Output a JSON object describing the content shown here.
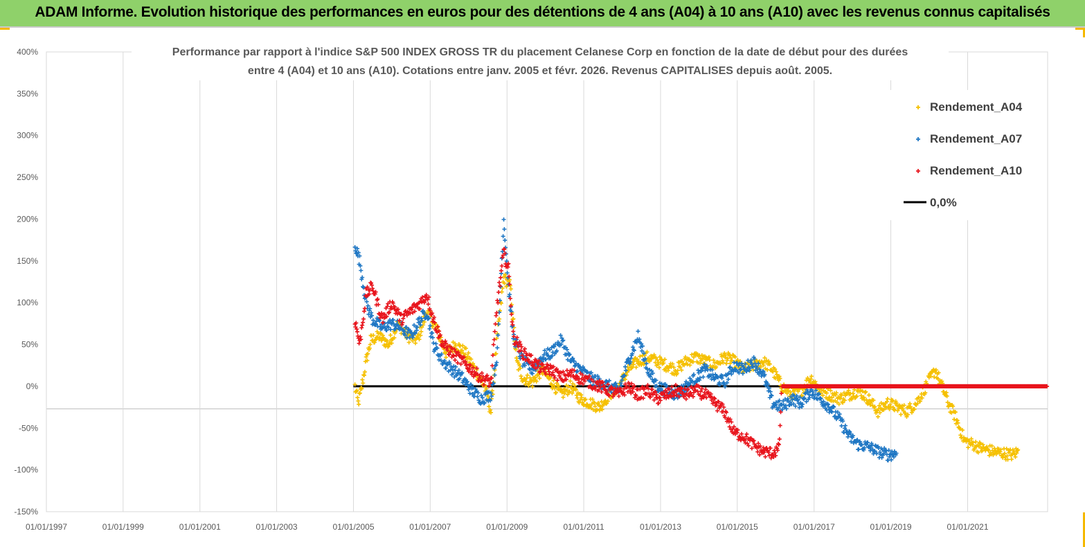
{
  "banner": {
    "title": "ADAM Informe. Evolution historique des performances en euros pour des détentions de 4 ans (A04) à 10 ans (A10) avec les revenus connus capitalisés"
  },
  "colors": {
    "banner_bg": "#8fd16a",
    "accent": "#f5b800",
    "series_A04": "#f5c000",
    "series_A07": "#1f77c4",
    "series_A10": "#e8141c",
    "zero_line": "#000000"
  },
  "chart_data": {
    "type": "scatter",
    "title_lines": [
      "Performance par rapport à l'indice S&P 500 INDEX GROSS TR  du placement Celanese Corp en fonction de la date de début pour des durées",
      "entre 4 (A04) et 10 ans (A10). Cotations entre janv. 2005 et févr. 2026. Revenus CAPITALISES depuis août. 2005."
    ],
    "ylim": [
      -150,
      400
    ],
    "yticks": [
      "400%",
      "350%",
      "300%",
      "250%",
      "200%",
      "150%",
      "100%",
      "50%",
      "0%",
      "-50%",
      "-100%",
      "-150%"
    ],
    "xlim": [
      "1997-01-01",
      "2023-02-01"
    ],
    "xticks": [
      "01/01/1997",
      "01/01/1999",
      "01/01/2001",
      "01/01/2003",
      "01/01/2005",
      "01/01/2007",
      "01/01/2009",
      "01/01/2011",
      "01/01/2013",
      "01/01/2015",
      "01/01/2017",
      "01/01/2019",
      "01/01/2021"
    ],
    "grid": "vertical",
    "legend_position": "top-right",
    "legend": [
      "Rendement_A04",
      "Rendement_A07",
      "Rendement_A10",
      "0,0%"
    ],
    "series": [
      {
        "name": "Rendement_A04",
        "points": [
          [
            "2005-01-15",
            0
          ],
          [
            "2005-02-15",
            -20
          ],
          [
            "2005-03-15",
            -5
          ],
          [
            "2005-05-01",
            30
          ],
          [
            "2005-06-15",
            55
          ],
          [
            "2005-09-01",
            60
          ],
          [
            "2005-12-01",
            50
          ],
          [
            "2006-03-01",
            75
          ],
          [
            "2006-06-01",
            60
          ],
          [
            "2006-09-01",
            55
          ],
          [
            "2006-12-01",
            90
          ],
          [
            "2007-03-01",
            70
          ],
          [
            "2007-06-01",
            40
          ],
          [
            "2007-09-01",
            50
          ],
          [
            "2007-12-01",
            40
          ],
          [
            "2008-03-01",
            20
          ],
          [
            "2008-06-01",
            0
          ],
          [
            "2008-08-01",
            -30
          ],
          [
            "2008-10-01",
            60
          ],
          [
            "2008-12-01",
            130
          ],
          [
            "2009-02-01",
            120
          ],
          [
            "2009-04-01",
            30
          ],
          [
            "2009-06-01",
            10
          ],
          [
            "2009-09-01",
            5
          ],
          [
            "2009-12-01",
            20
          ],
          [
            "2010-03-01",
            5
          ],
          [
            "2010-06-01",
            -10
          ],
          [
            "2010-09-01",
            0
          ],
          [
            "2010-12-01",
            -15
          ],
          [
            "2011-03-01",
            -20
          ],
          [
            "2011-06-01",
            -25
          ],
          [
            "2011-09-01",
            -10
          ],
          [
            "2011-12-01",
            0
          ],
          [
            "2012-03-01",
            20
          ],
          [
            "2012-06-01",
            30
          ],
          [
            "2012-09-01",
            35
          ],
          [
            "2012-12-01",
            30
          ],
          [
            "2013-03-01",
            25
          ],
          [
            "2013-06-01",
            20
          ],
          [
            "2013-09-01",
            30
          ],
          [
            "2013-12-01",
            35
          ],
          [
            "2014-03-01",
            30
          ],
          [
            "2014-06-01",
            25
          ],
          [
            "2014-09-01",
            35
          ],
          [
            "2014-12-01",
            30
          ],
          [
            "2015-03-01",
            20
          ],
          [
            "2015-06-01",
            25
          ],
          [
            "2015-09-01",
            30
          ],
          [
            "2015-12-01",
            20
          ],
          [
            "2016-03-01",
            0
          ],
          [
            "2016-06-01",
            -10
          ],
          [
            "2016-09-01",
            -5
          ],
          [
            "2016-12-01",
            10
          ],
          [
            "2017-03-01",
            -5
          ],
          [
            "2017-06-01",
            -10
          ],
          [
            "2017-09-01",
            -15
          ],
          [
            "2017-12-01",
            -10
          ],
          [
            "2018-03-01",
            -5
          ],
          [
            "2018-06-01",
            -15
          ],
          [
            "2018-09-01",
            -30
          ],
          [
            "2018-12-01",
            -20
          ],
          [
            "2019-03-01",
            -25
          ],
          [
            "2019-06-01",
            -30
          ],
          [
            "2019-09-01",
            -20
          ],
          [
            "2019-12-01",
            0
          ],
          [
            "2020-03-01",
            20
          ],
          [
            "2020-05-01",
            0
          ],
          [
            "2020-07-01",
            -20
          ],
          [
            "2020-09-01",
            -35
          ],
          [
            "2020-12-01",
            -65
          ],
          [
            "2021-03-01",
            -70
          ],
          [
            "2021-06-01",
            -75
          ],
          [
            "2021-09-01",
            -78
          ],
          [
            "2021-12-01",
            -80
          ],
          [
            "2022-03-01",
            -82
          ],
          [
            "2022-05-01",
            -78
          ]
        ]
      },
      {
        "name": "Rendement_A07",
        "points": [
          [
            "2005-01-15",
            170
          ],
          [
            "2005-03-01",
            150
          ],
          [
            "2005-05-01",
            100
          ],
          [
            "2005-07-01",
            80
          ],
          [
            "2005-10-01",
            70
          ],
          [
            "2006-01-01",
            75
          ],
          [
            "2006-04-01",
            70
          ],
          [
            "2006-07-01",
            60
          ],
          [
            "2006-10-01",
            80
          ],
          [
            "2006-12-01",
            90
          ],
          [
            "2007-02-01",
            50
          ],
          [
            "2007-05-01",
            30
          ],
          [
            "2007-08-01",
            20
          ],
          [
            "2007-11-01",
            10
          ],
          [
            "2008-02-01",
            -5
          ],
          [
            "2008-05-01",
            -15
          ],
          [
            "2008-08-01",
            -10
          ],
          [
            "2008-10-01",
            40
          ],
          [
            "2008-12-01",
            200
          ],
          [
            "2009-01-15",
            120
          ],
          [
            "2009-03-01",
            60
          ],
          [
            "2009-06-01",
            30
          ],
          [
            "2009-09-01",
            20
          ],
          [
            "2009-12-01",
            35
          ],
          [
            "2010-03-01",
            40
          ],
          [
            "2010-06-01",
            55
          ],
          [
            "2010-09-01",
            30
          ],
          [
            "2010-12-01",
            20
          ],
          [
            "2011-03-01",
            10
          ],
          [
            "2011-06-01",
            5
          ],
          [
            "2011-09-01",
            0
          ],
          [
            "2011-12-01",
            -5
          ],
          [
            "2012-03-01",
            30
          ],
          [
            "2012-06-01",
            60
          ],
          [
            "2012-09-01",
            20
          ],
          [
            "2012-12-01",
            0
          ],
          [
            "2013-03-01",
            -5
          ],
          [
            "2013-06-01",
            -10
          ],
          [
            "2013-09-01",
            0
          ],
          [
            "2013-12-01",
            10
          ],
          [
            "2014-03-01",
            20
          ],
          [
            "2014-06-01",
            10
          ],
          [
            "2014-09-01",
            5
          ],
          [
            "2014-12-01",
            25
          ],
          [
            "2015-03-01",
            20
          ],
          [
            "2015-06-01",
            30
          ],
          [
            "2015-09-01",
            15
          ],
          [
            "2015-12-01",
            -20
          ],
          [
            "2016-03-01",
            -25
          ],
          [
            "2016-06-01",
            -15
          ],
          [
            "2016-09-01",
            -20
          ],
          [
            "2016-12-01",
            -5
          ],
          [
            "2017-03-01",
            -15
          ],
          [
            "2017-06-01",
            -25
          ],
          [
            "2017-09-01",
            -40
          ],
          [
            "2017-12-01",
            -60
          ],
          [
            "2018-03-01",
            -70
          ],
          [
            "2018-06-01",
            -72
          ],
          [
            "2018-09-01",
            -78
          ],
          [
            "2018-12-01",
            -82
          ],
          [
            "2019-03-01",
            -80
          ]
        ]
      },
      {
        "name": "Rendement_A10",
        "points": [
          [
            "2005-01-15",
            80
          ],
          [
            "2005-03-01",
            50
          ],
          [
            "2005-05-01",
            110
          ],
          [
            "2005-07-01",
            120
          ],
          [
            "2005-10-01",
            80
          ],
          [
            "2006-01-01",
            100
          ],
          [
            "2006-04-01",
            80
          ],
          [
            "2006-07-01",
            90
          ],
          [
            "2006-10-01",
            100
          ],
          [
            "2006-12-01",
            110
          ],
          [
            "2007-02-01",
            80
          ],
          [
            "2007-05-01",
            50
          ],
          [
            "2007-08-01",
            40
          ],
          [
            "2007-11-01",
            30
          ],
          [
            "2008-02-01",
            20
          ],
          [
            "2008-05-01",
            10
          ],
          [
            "2008-08-01",
            5
          ],
          [
            "2008-10-01",
            100
          ],
          [
            "2008-12-01",
            160
          ],
          [
            "2009-01-15",
            140
          ],
          [
            "2009-03-01",
            60
          ],
          [
            "2009-06-01",
            40
          ],
          [
            "2009-09-01",
            30
          ],
          [
            "2009-12-01",
            20
          ],
          [
            "2010-03-01",
            20
          ],
          [
            "2010-06-01",
            10
          ],
          [
            "2010-09-01",
            15
          ],
          [
            "2010-12-01",
            10
          ],
          [
            "2011-03-01",
            5
          ],
          [
            "2011-06-01",
            0
          ],
          [
            "2011-09-01",
            -5
          ],
          [
            "2011-12-01",
            -10
          ],
          [
            "2012-03-01",
            0
          ],
          [
            "2012-06-01",
            -10
          ],
          [
            "2012-09-01",
            -5
          ],
          [
            "2012-12-01",
            -15
          ],
          [
            "2013-03-01",
            -10
          ],
          [
            "2013-06-01",
            -5
          ],
          [
            "2013-09-01",
            -10
          ],
          [
            "2013-12-01",
            -5
          ],
          [
            "2014-03-01",
            -10
          ],
          [
            "2014-06-01",
            -20
          ],
          [
            "2014-09-01",
            -30
          ],
          [
            "2014-12-01",
            -55
          ],
          [
            "2015-03-01",
            -60
          ],
          [
            "2015-06-01",
            -70
          ],
          [
            "2015-09-01",
            -78
          ],
          [
            "2015-12-01",
            -80
          ],
          [
            "2016-02-01",
            -75
          ],
          [
            "2016-03-01",
            0
          ],
          [
            "2023-02-01",
            0
          ]
        ]
      }
    ],
    "zero_line_range": [
      "2005-01-01",
      "2016-03-01"
    ]
  }
}
